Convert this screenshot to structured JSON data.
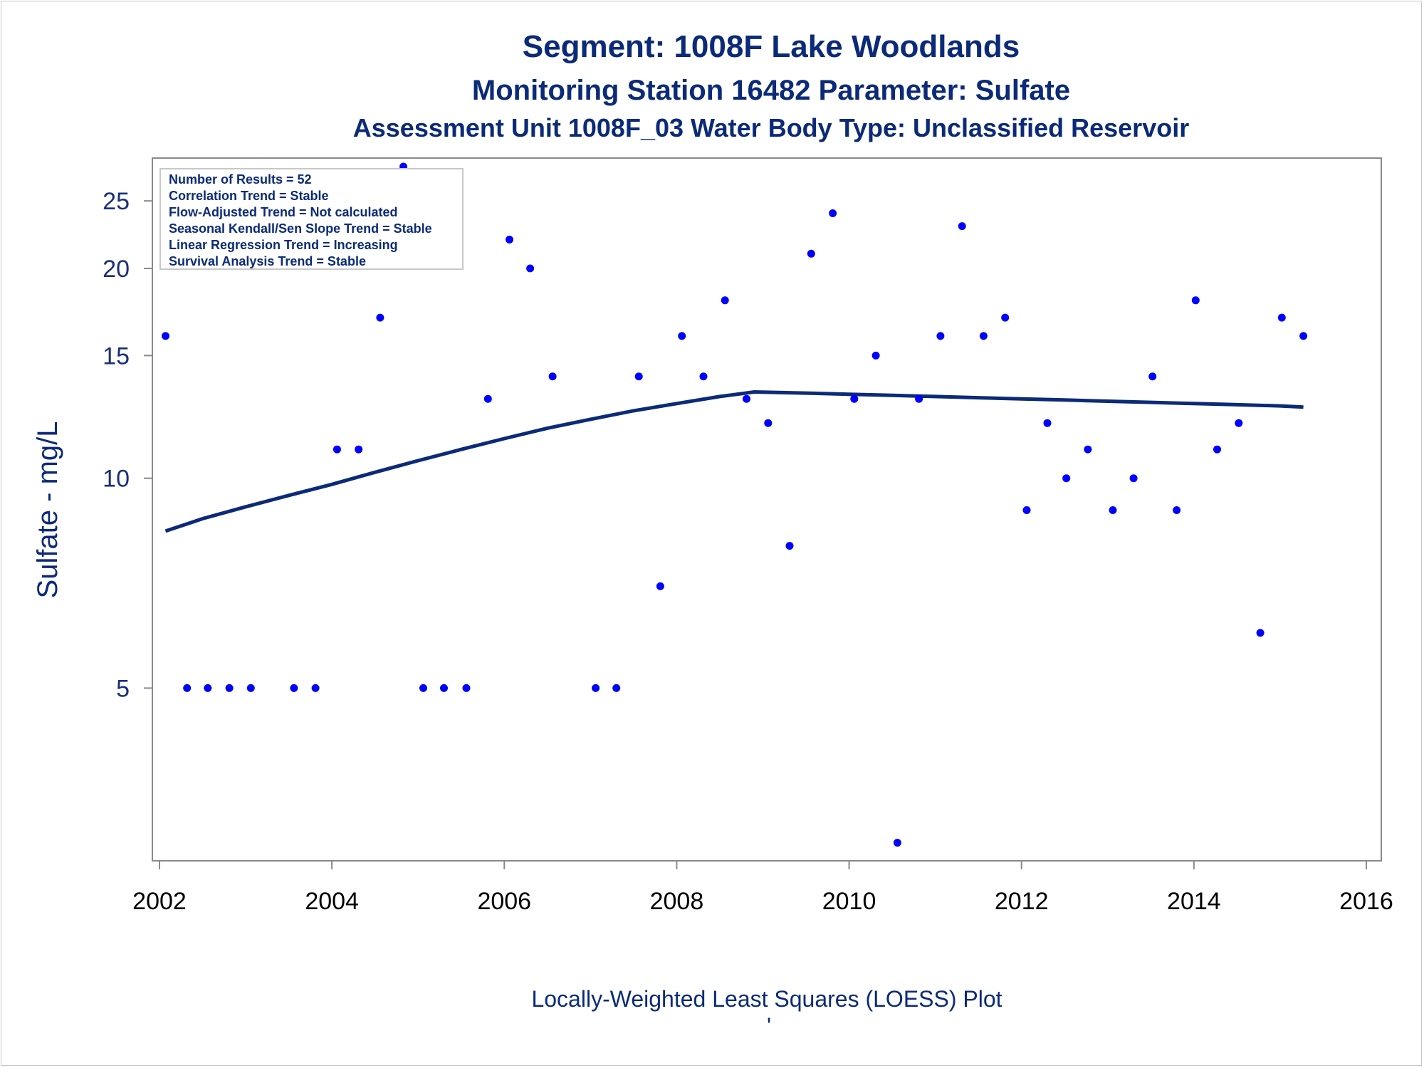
{
  "titles": {
    "line1": "Segment: 1008F  Lake Woodlands",
    "line2": "Monitoring Station 16482 Parameter: Sulfate",
    "line3": "Assessment Unit 1008F_03   Water Body Type: Unclassified Reservoir"
  },
  "stats_box": [
    "Number of Results = 52",
    "Correlation Trend = Stable",
    "Flow-Adjusted Trend = Not calculated",
    "Seasonal Kendall/Sen Slope Trend = Stable",
    "Linear Regression Trend = Increasing",
    "Survival Analysis Trend = Stable"
  ],
  "footer": {
    "caption": "Locally-Weighted Least Squares (LOESS) Plot",
    "tick_mark": "'"
  },
  "colors": {
    "points": "#0000ff",
    "loess_line": "#0b2a78",
    "text": "#0b2a78",
    "axis": "#8a8a8a"
  },
  "chart_data": {
    "type": "scatter",
    "ylabel": "Sulfate - mg/L",
    "xlabel": "",
    "y_scale": "log",
    "xlim": [
      2002,
      2016
    ],
    "ylim": [
      2.9,
      28
    ],
    "x_ticks": [
      2002,
      2004,
      2006,
      2008,
      2010,
      2012,
      2014,
      2016
    ],
    "y_ticks": [
      5,
      10,
      15,
      20,
      25
    ],
    "grid": false,
    "legend": "none",
    "points": [
      [
        2002.07,
        16
      ],
      [
        2002.32,
        5
      ],
      [
        2002.56,
        5
      ],
      [
        2002.81,
        5
      ],
      [
        2003.06,
        5
      ],
      [
        2003.56,
        5
      ],
      [
        2003.81,
        5
      ],
      [
        2004.06,
        11
      ],
      [
        2004.31,
        11
      ],
      [
        2004.56,
        17
      ],
      [
        2004.83,
        28
      ],
      [
        2005.06,
        5
      ],
      [
        2005.3,
        5
      ],
      [
        2005.56,
        5
      ],
      [
        2005.81,
        13
      ],
      [
        2006.06,
        22
      ],
      [
        2006.3,
        20
      ],
      [
        2006.56,
        14
      ],
      [
        2007.06,
        5
      ],
      [
        2007.3,
        5
      ],
      [
        2007.56,
        14
      ],
      [
        2007.81,
        7
      ],
      [
        2008.06,
        16
      ],
      [
        2008.31,
        14
      ],
      [
        2008.56,
        18
      ],
      [
        2008.81,
        13
      ],
      [
        2009.06,
        12
      ],
      [
        2009.31,
        8
      ],
      [
        2009.56,
        21
      ],
      [
        2009.81,
        24
      ],
      [
        2010.06,
        13
      ],
      [
        2010.31,
        15
      ],
      [
        2010.56,
        3
      ],
      [
        2010.81,
        13
      ],
      [
        2011.06,
        16
      ],
      [
        2011.31,
        23
      ],
      [
        2011.56,
        16
      ],
      [
        2011.81,
        17
      ],
      [
        2012.06,
        9
      ],
      [
        2012.3,
        12
      ],
      [
        2012.52,
        10
      ],
      [
        2012.77,
        11
      ],
      [
        2013.06,
        9
      ],
      [
        2013.3,
        10
      ],
      [
        2013.52,
        14
      ],
      [
        2013.8,
        9
      ],
      [
        2014.02,
        18
      ],
      [
        2014.27,
        11
      ],
      [
        2014.52,
        12
      ],
      [
        2014.77,
        6
      ],
      [
        2015.02,
        17
      ],
      [
        2015.27,
        16
      ]
    ],
    "loess": [
      [
        2002.07,
        8.4
      ],
      [
        2002.5,
        8.75
      ],
      [
        2003.0,
        9.1
      ],
      [
        2003.5,
        9.45
      ],
      [
        2004.0,
        9.8
      ],
      [
        2004.5,
        10.2
      ],
      [
        2005.0,
        10.6
      ],
      [
        2005.5,
        11.0
      ],
      [
        2006.0,
        11.4
      ],
      [
        2006.5,
        11.8
      ],
      [
        2007.0,
        12.15
      ],
      [
        2007.5,
        12.5
      ],
      [
        2008.0,
        12.8
      ],
      [
        2008.5,
        13.1
      ],
      [
        2008.9,
        13.3
      ],
      [
        2009.5,
        13.25
      ],
      [
        2010.0,
        13.2
      ],
      [
        2010.5,
        13.15
      ],
      [
        2011.0,
        13.1
      ],
      [
        2011.5,
        13.05
      ],
      [
        2012.0,
        13.0
      ],
      [
        2012.5,
        12.95
      ],
      [
        2013.0,
        12.9
      ],
      [
        2013.5,
        12.85
      ],
      [
        2014.0,
        12.8
      ],
      [
        2014.5,
        12.75
      ],
      [
        2015.0,
        12.7
      ],
      [
        2015.27,
        12.65
      ]
    ]
  }
}
